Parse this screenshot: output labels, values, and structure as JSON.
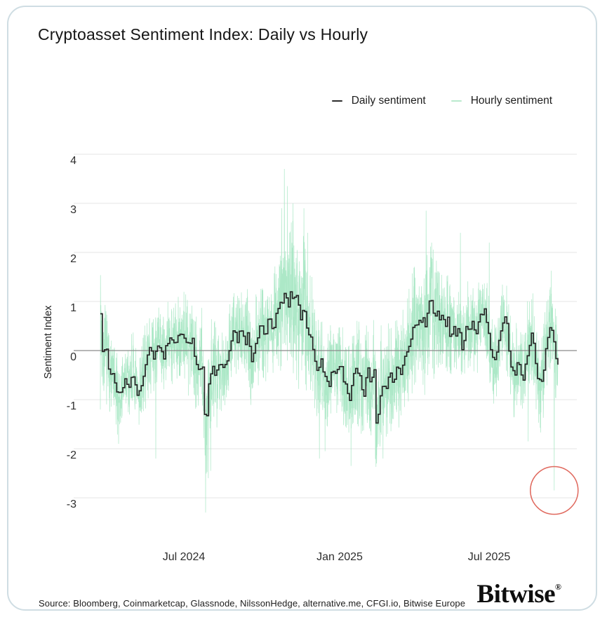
{
  "card": {
    "title": "Cryptoasset Sentiment Index: Daily vs Hourly",
    "source": "Source: Bloomberg, Coinmarketcap, Glassnode, NilssonHedge, alternative.me, CFGI.io, Bitwise Europe",
    "logo_text": "Bitwise",
    "logo_reg": "®"
  },
  "legend": [
    {
      "label": "Daily sentiment",
      "color": "#2b2b2b"
    },
    {
      "label": "Hourly sentiment",
      "color": "#b9e9cd"
    }
  ],
  "colors": {
    "card_border": "#cfdde3",
    "grid_line": "#e6e6e6",
    "zero_line": "#8a8a8a",
    "daily_line": "#262626",
    "hourly_line": "#a3e5c1",
    "annotation_red": "#e0695e",
    "text_dark": "#1c1c1c"
  },
  "chart_data": {
    "type": "line",
    "title": "Cryptoasset Sentiment Index: Daily vs Hourly",
    "xlabel": "",
    "ylabel": "Sentiment Index",
    "ylim": [
      -3.55,
      4.4
    ],
    "x_range_dates": [
      "Apr 2024",
      "Oct 2025"
    ],
    "grid": true,
    "legend_position": "top-right",
    "y_ticks": [
      4,
      3,
      2,
      1,
      0,
      -1,
      -2,
      -3
    ],
    "x_ticks": [
      {
        "label": "Jul 2024",
        "t": 0.164
      },
      {
        "label": "Jan 2025",
        "t": 0.505
      },
      {
        "label": "Jul 2025",
        "t": 0.831
      }
    ],
    "series": [
      {
        "name": "Daily sentiment",
        "render": "step-line",
        "color": "#262626",
        "keypoints": [
          [
            0.0,
            0.85
          ],
          [
            0.005,
            -0.15
          ],
          [
            0.011,
            0.1
          ],
          [
            0.018,
            -0.35
          ],
          [
            0.026,
            -0.5
          ],
          [
            0.034,
            -0.9
          ],
          [
            0.044,
            -0.95
          ],
          [
            0.054,
            -0.55
          ],
          [
            0.061,
            -0.7
          ],
          [
            0.069,
            -0.4
          ],
          [
            0.077,
            -0.75
          ],
          [
            0.084,
            -0.95
          ],
          [
            0.092,
            -0.5
          ],
          [
            0.1,
            -0.3
          ],
          [
            0.107,
            0.05
          ],
          [
            0.115,
            -0.2
          ],
          [
            0.123,
            0.1
          ],
          [
            0.13,
            0.15
          ],
          [
            0.138,
            -0.1
          ],
          [
            0.146,
            0.1
          ],
          [
            0.153,
            0.25
          ],
          [
            0.161,
            0.15
          ],
          [
            0.169,
            0.3
          ],
          [
            0.176,
            0.2
          ],
          [
            0.184,
            0.35
          ],
          [
            0.192,
            0.1
          ],
          [
            0.199,
            0.25
          ],
          [
            0.207,
            -0.1
          ],
          [
            0.215,
            -0.4
          ],
          [
            0.222,
            -0.15
          ],
          [
            0.23,
            -1.75
          ],
          [
            0.238,
            -0.5
          ],
          [
            0.245,
            -0.3
          ],
          [
            0.253,
            -0.55
          ],
          [
            0.261,
            -0.2
          ],
          [
            0.268,
            -0.45
          ],
          [
            0.276,
            -0.15
          ],
          [
            0.284,
            0.1
          ],
          [
            0.291,
            0.4
          ],
          [
            0.299,
            0.25
          ],
          [
            0.307,
            0.45
          ],
          [
            0.314,
            0.15
          ],
          [
            0.322,
            0.35
          ],
          [
            0.33,
            -0.2
          ],
          [
            0.337,
            0.1
          ],
          [
            0.345,
            0.35
          ],
          [
            0.353,
            0.5
          ],
          [
            0.36,
            0.4
          ],
          [
            0.368,
            0.6
          ],
          [
            0.376,
            0.45
          ],
          [
            0.383,
            0.7
          ],
          [
            0.391,
            0.85
          ],
          [
            0.399,
            1.0
          ],
          [
            0.403,
            1.3
          ],
          [
            0.41,
            0.9
          ],
          [
            0.416,
            1.25
          ],
          [
            0.422,
            0.95
          ],
          [
            0.429,
            1.1
          ],
          [
            0.437,
            0.7
          ],
          [
            0.445,
            0.9
          ],
          [
            0.452,
            0.5
          ],
          [
            0.46,
            0.3
          ],
          [
            0.468,
            -0.1
          ],
          [
            0.475,
            -0.4
          ],
          [
            0.483,
            -0.25
          ],
          [
            0.491,
            -0.5
          ],
          [
            0.498,
            -0.8
          ],
          [
            0.506,
            -0.3
          ],
          [
            0.514,
            -0.4
          ],
          [
            0.521,
            -0.2
          ],
          [
            0.529,
            -0.5
          ],
          [
            0.537,
            -0.7
          ],
          [
            0.544,
            -1.0
          ],
          [
            0.552,
            -0.6
          ],
          [
            0.56,
            -0.3
          ],
          [
            0.567,
            -0.6
          ],
          [
            0.575,
            -0.9
          ],
          [
            0.583,
            -0.3
          ],
          [
            0.59,
            -0.7
          ],
          [
            0.598,
            -0.4
          ],
          [
            0.604,
            -1.8
          ],
          [
            0.61,
            -0.9
          ],
          [
            0.617,
            -0.6
          ],
          [
            0.624,
            -0.8
          ],
          [
            0.632,
            -0.5
          ],
          [
            0.64,
            -0.65
          ],
          [
            0.647,
            -0.35
          ],
          [
            0.655,
            -0.5
          ],
          [
            0.663,
            -0.2
          ],
          [
            0.67,
            0.05
          ],
          [
            0.678,
            0.3
          ],
          [
            0.686,
            0.55
          ],
          [
            0.693,
            0.5
          ],
          [
            0.701,
            0.65
          ],
          [
            0.709,
            0.55
          ],
          [
            0.716,
            0.8
          ],
          [
            0.722,
            1.15
          ],
          [
            0.729,
            0.7
          ],
          [
            0.735,
            0.9
          ],
          [
            0.741,
            0.55
          ],
          [
            0.747,
            0.7
          ],
          [
            0.753,
            0.45
          ],
          [
            0.759,
            0.6
          ],
          [
            0.765,
            0.3
          ],
          [
            0.771,
            0.5
          ],
          [
            0.778,
            0.25
          ],
          [
            0.784,
            0.45
          ],
          [
            0.79,
            0.1
          ],
          [
            0.796,
            0.3
          ],
          [
            0.802,
            0.5
          ],
          [
            0.808,
            0.35
          ],
          [
            0.814,
            0.55
          ],
          [
            0.821,
            0.3
          ],
          [
            0.827,
            0.6
          ],
          [
            0.833,
            0.75
          ],
          [
            0.839,
            0.9
          ],
          [
            0.845,
            0.5
          ],
          [
            0.851,
            0.2
          ],
          [
            0.857,
            -0.1
          ],
          [
            0.863,
            -0.2
          ],
          [
            0.87,
            0.1
          ],
          [
            0.876,
            0.4
          ],
          [
            0.882,
            0.7
          ],
          [
            0.888,
            0.5
          ],
          [
            0.894,
            -0.1
          ],
          [
            0.9,
            -0.35
          ],
          [
            0.906,
            -0.5
          ],
          [
            0.912,
            -0.25
          ],
          [
            0.919,
            -0.4
          ],
          [
            0.925,
            -0.55
          ],
          [
            0.931,
            -0.2
          ],
          [
            0.937,
            0.2
          ],
          [
            0.943,
            0.35
          ],
          [
            0.949,
            -0.1
          ],
          [
            0.955,
            -0.5
          ],
          [
            0.962,
            -0.75
          ],
          [
            0.968,
            -0.5
          ],
          [
            0.974,
            0.1
          ],
          [
            0.98,
            0.4
          ],
          [
            0.986,
            0.55
          ],
          [
            0.992,
            0.1
          ],
          [
            0.997,
            -0.25
          ],
          [
            1.0,
            -0.35
          ]
        ]
      },
      {
        "name": "Hourly sentiment",
        "render": "noisy-line",
        "color": "#a3e5c1",
        "days": 560,
        "samples_per_day": 6,
        "noise_seed": 7,
        "amplitude_envelope": [
          [
            0.0,
            0.65
          ],
          [
            0.05,
            0.55
          ],
          [
            0.12,
            0.55
          ],
          [
            0.18,
            0.6
          ],
          [
            0.23,
            0.85
          ],
          [
            0.27,
            0.6
          ],
          [
            0.33,
            0.6
          ],
          [
            0.38,
            0.75
          ],
          [
            0.4,
            1.05
          ],
          [
            0.44,
            1.0
          ],
          [
            0.48,
            0.75
          ],
          [
            0.52,
            0.7
          ],
          [
            0.57,
            0.75
          ],
          [
            0.62,
            0.75
          ],
          [
            0.68,
            0.8
          ],
          [
            0.72,
            0.9
          ],
          [
            0.76,
            0.65
          ],
          [
            0.82,
            0.6
          ],
          [
            0.88,
            0.6
          ],
          [
            0.94,
            0.65
          ],
          [
            1.0,
            0.7
          ]
        ],
        "spikes": [
          [
            0.0,
            -1.2
          ],
          [
            0.04,
            -1.9
          ],
          [
            0.121,
            -2.2
          ],
          [
            0.23,
            -3.3
          ],
          [
            0.236,
            -2.6
          ],
          [
            0.241,
            -2.45
          ],
          [
            0.396,
            2.9
          ],
          [
            0.402,
            3.7
          ],
          [
            0.409,
            3.35
          ],
          [
            0.421,
            3.0
          ],
          [
            0.445,
            2.9
          ],
          [
            0.453,
            2.4
          ],
          [
            0.479,
            -2.2
          ],
          [
            0.491,
            -2.05
          ],
          [
            0.548,
            -2.35
          ],
          [
            0.604,
            -2.3
          ],
          [
            0.618,
            -2.2
          ],
          [
            0.712,
            2.85
          ],
          [
            0.724,
            2.2
          ],
          [
            0.787,
            2.4
          ],
          [
            0.85,
            2.2
          ],
          [
            0.935,
            -1.85
          ],
          [
            0.992,
            -2.85
          ]
        ]
      }
    ],
    "annotation": {
      "type": "circle",
      "t": 0.992,
      "value": -2.85,
      "radius_px": 34,
      "color": "#e0695e"
    }
  }
}
